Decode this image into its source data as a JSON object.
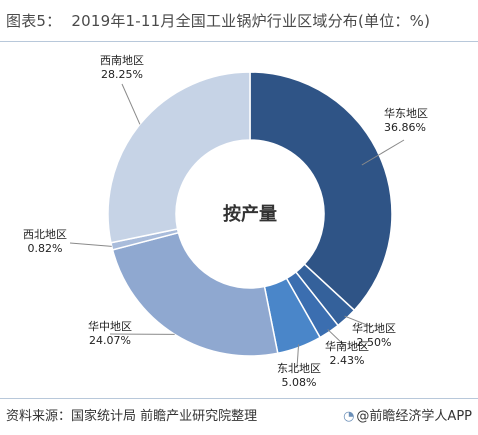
{
  "header": {
    "prefix": "图表5：",
    "text": "2019年1-11月全国工业锅炉行业区域分布(单位：%)"
  },
  "chart_data": {
    "type": "pie",
    "variant": "donut",
    "title": "2019年1-11月全国工业锅炉行业区域分布(单位：%)",
    "center_label": "按产量",
    "unit": "%",
    "legend": "none",
    "slices": [
      {
        "name": "华东地区",
        "value": 36.86,
        "value_label": "36.86%",
        "color": "#2f5486"
      },
      {
        "name": "华北地区",
        "value": 2.5,
        "value_label": "2.50%",
        "color": "#34619b"
      },
      {
        "name": "华南地区",
        "value": 2.43,
        "value_label": "2.43%",
        "color": "#3b6eb0"
      },
      {
        "name": "东北地区",
        "value": 5.08,
        "value_label": "5.08%",
        "color": "#4a86c9"
      },
      {
        "name": "华中地区",
        "value": 24.07,
        "value_label": "24.07%",
        "color": "#8fa8d0"
      },
      {
        "name": "西北地区",
        "value": 0.82,
        "value_label": "0.82%",
        "color": "#a9bcdb"
      },
      {
        "name": "西南地区",
        "value": 28.25,
        "value_label": "28.25%",
        "color": "#c6d3e6"
      }
    ]
  },
  "footer": {
    "source": "资料来源：国家统计局 前瞻产业研究院整理",
    "brand": "@前瞻经济学人APP",
    "brand_icon": "trend-logo-icon"
  }
}
